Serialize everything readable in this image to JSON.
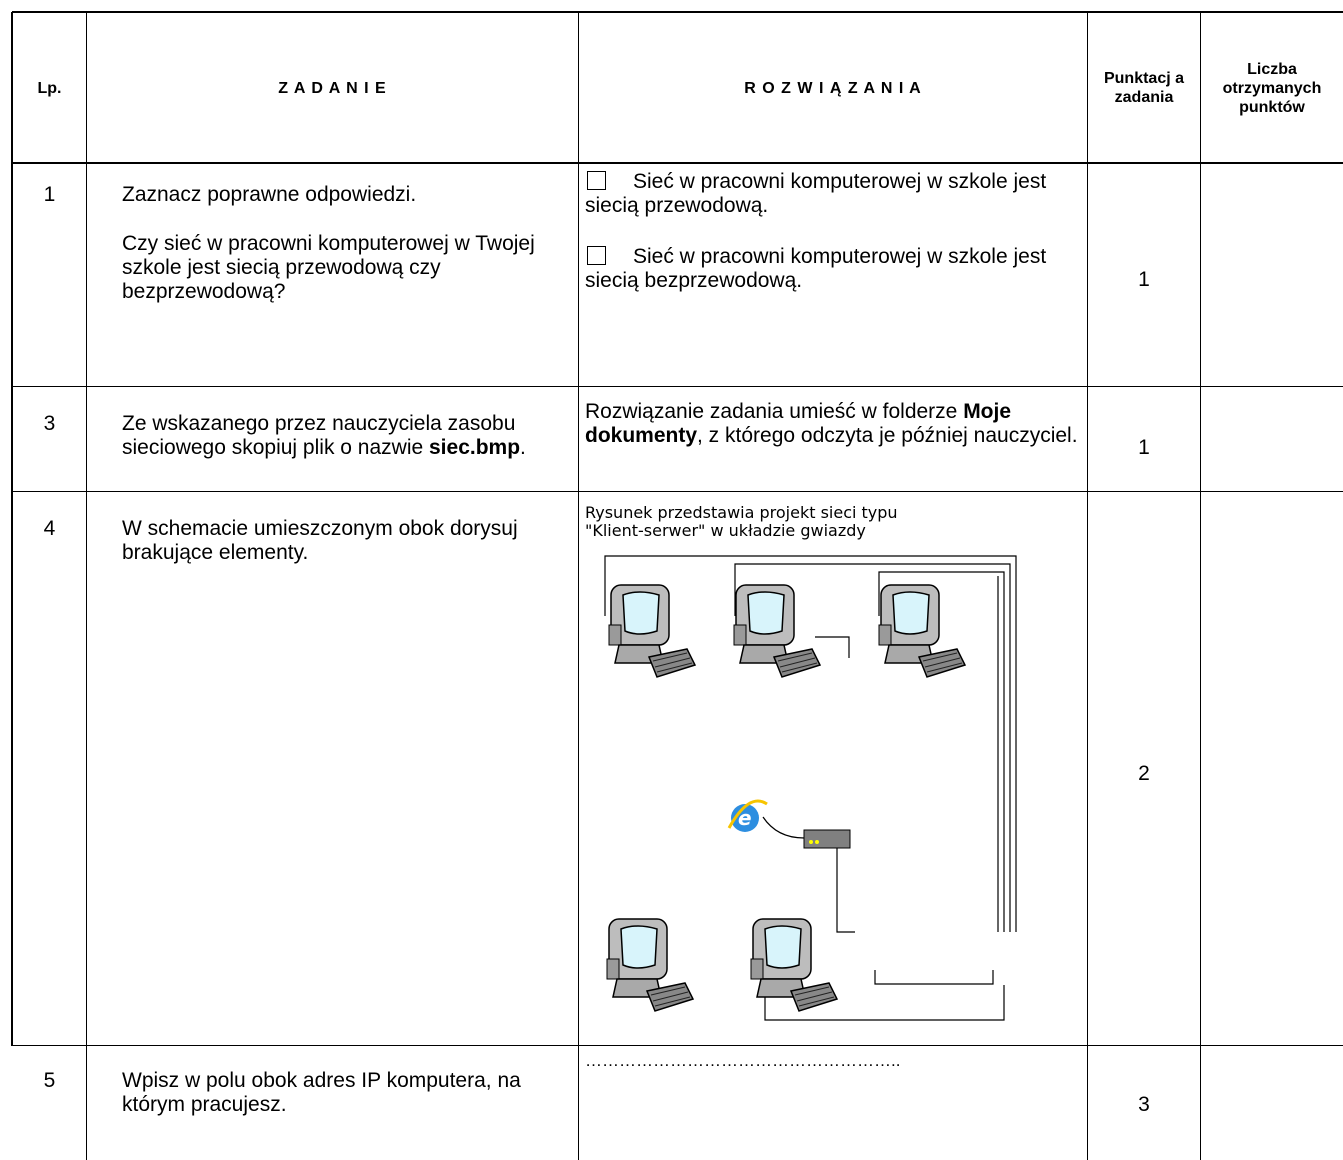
{
  "table": {
    "header": {
      "lp": "Lp.",
      "task": "Z A D A N I E",
      "solution": "R O Z W I Ą Z A N I A",
      "points": "Punktacj a zadania",
      "received": "Liczba otrzymanych punktów"
    },
    "rows": [
      {
        "lp": "1",
        "task": [
          "Zaznacz poprawne odpowiedzi.",
          "Czy sieć w pracowni komputerowej w Twojej szkole jest siecią przewodową czy bezprzewodową?"
        ],
        "solution": [
          "Sieć w pracowni komputerowej w szkole jest siecią przewodową.",
          "Sieć w pracowni komputerowej w szkole jest siecią  bezprzewodową."
        ],
        "points": 1
      },
      {
        "lp": "3",
        "task": [
          "Ze wskazanego przez nauczyciela zasobu sieciowego skopiuj plik o nazwie ",
          "siec.bmp",
          "."
        ],
        "solution": [
          "Rozwiązanie zadania umieść w folderze ",
          "Moje dokumenty",
          ", z którego odczyta je później nauczyciel."
        ],
        "points": 1
      },
      {
        "lp": "4",
        "task": [
          "W schemacie umieszczonym obok dorysuj brakujące elementy."
        ],
        "solution": [
          "Rysunek przedstawia projekt sieci typu",
          "\"Klient-serwer\" w układzie gwiazdy"
        ],
        "points": 2
      },
      {
        "lp": "5",
        "task": [
          "Wpisz w polu obok adres IP komputera, na którym pracujesz."
        ],
        "solution": [
          "……………………………………………….."
        ],
        "points": 3
      }
    ]
  }
}
